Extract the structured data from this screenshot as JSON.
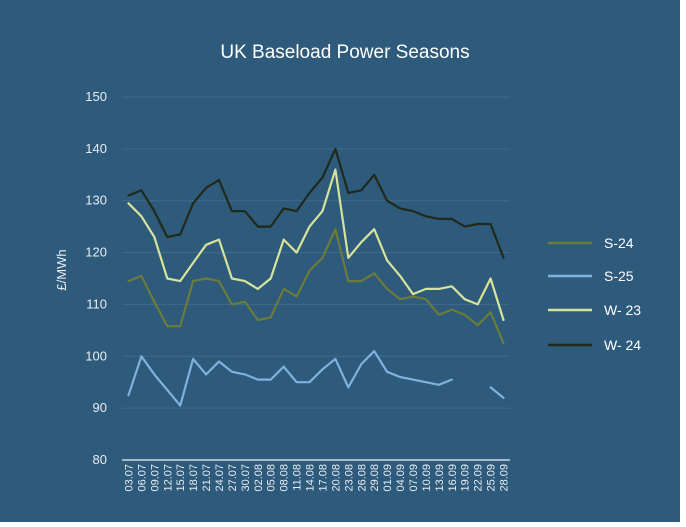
{
  "chart_data": {
    "type": "line",
    "title": "UK Baseload Power Seasons",
    "ylabel": "£/MWh",
    "ylim": [
      80,
      150
    ],
    "yticks": [
      80,
      90,
      100,
      110,
      120,
      130,
      140,
      150
    ],
    "grid": true,
    "legend_position": "right",
    "x": [
      "03.07",
      "06.07",
      "09.07",
      "12.07",
      "15.07",
      "18.07",
      "21.07",
      "24.07",
      "27.07",
      "30.07",
      "02.08",
      "05.08",
      "08.08",
      "11.08",
      "14.08",
      "17.08",
      "20.08",
      "23.08",
      "26.08",
      "29.08",
      "01.09",
      "04.09",
      "07.09",
      "10.09",
      "13.09",
      "16.09",
      "19.09",
      "22.09",
      "25.09",
      "28.09"
    ],
    "series": [
      {
        "name": "S-24",
        "color": "#6b7b3a",
        "values": [
          114.5,
          115.5,
          110.5,
          105.8,
          105.8,
          114.5,
          115.0,
          114.5,
          110.0,
          110.5,
          107.0,
          107.5,
          113.0,
          111.5,
          116.5,
          119.0,
          124.5,
          114.5,
          114.5,
          116.0,
          113.0,
          111.0,
          111.5,
          111.0,
          108.0,
          109.0,
          108.0,
          106.0,
          108.5,
          102.5
        ]
      },
      {
        "name": "S-25",
        "color": "#7fb2dc",
        "values": [
          92.5,
          100.0,
          96.5,
          93.5,
          90.5,
          99.5,
          96.5,
          99.0,
          97.0,
          96.5,
          95.5,
          95.5,
          98.0,
          95.0,
          95.0,
          97.5,
          99.5,
          94.0,
          98.5,
          101.0,
          97.0,
          96.0,
          95.5,
          95.0,
          94.5,
          95.5,
          null,
          null,
          94.0,
          92.0
        ]
      },
      {
        "name": "W- 23",
        "color": "#d6e39a",
        "values": [
          129.5,
          127.0,
          123.0,
          115.0,
          114.5,
          118.0,
          121.5,
          122.5,
          115.0,
          114.5,
          113.0,
          115.0,
          122.5,
          120.0,
          125.0,
          128.0,
          136.0,
          119.0,
          122.0,
          124.5,
          118.5,
          115.5,
          112.0,
          113.0,
          113.0,
          113.5,
          111.0,
          110.0,
          115.0,
          107.0
        ]
      },
      {
        "name": "W- 24",
        "color": "#1f2a1c",
        "values": [
          131.0,
          132.0,
          128.0,
          123.0,
          123.5,
          129.5,
          132.5,
          134.0,
          128.0,
          128.0,
          125.0,
          125.0,
          128.5,
          128.0,
          131.5,
          134.5,
          140.0,
          131.5,
          132.0,
          135.0,
          130.0,
          128.5,
          128.0,
          127.0,
          126.5,
          126.5,
          125.0,
          125.5,
          125.5,
          119.0
        ]
      }
    ]
  }
}
